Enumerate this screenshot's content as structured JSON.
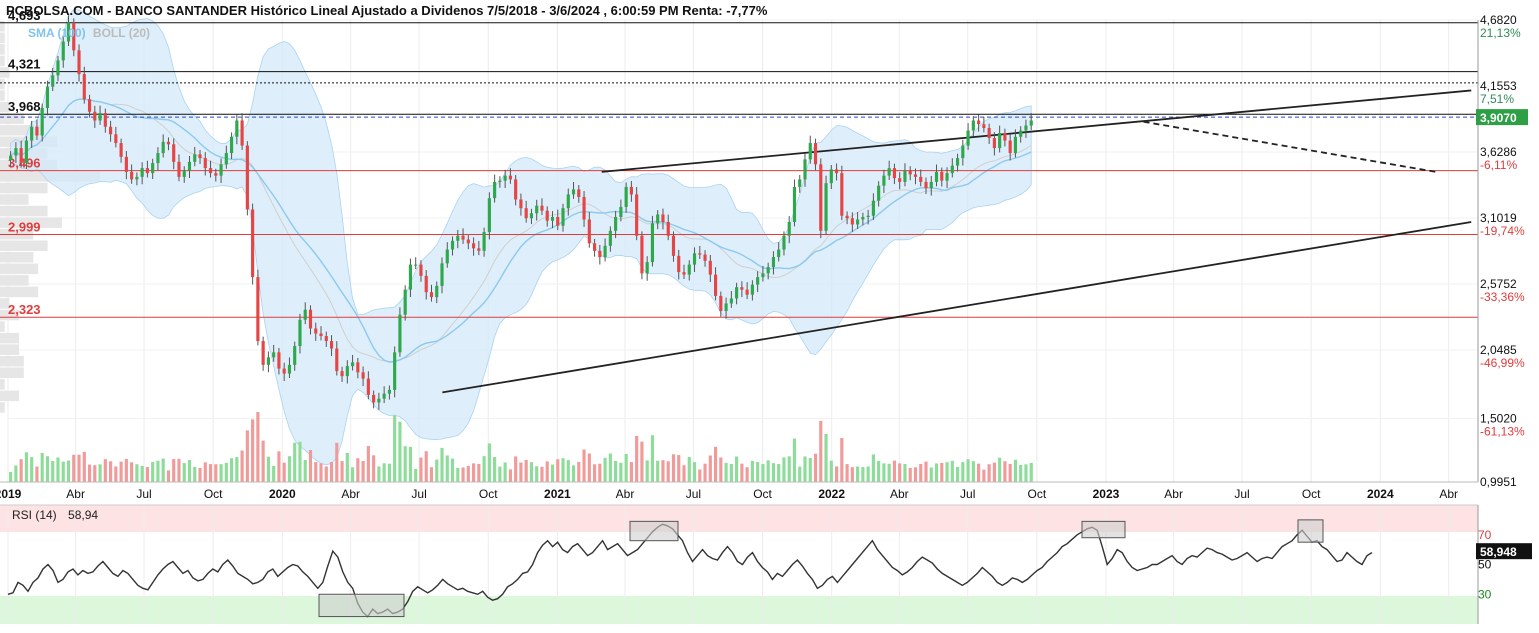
{
  "header": {
    "title": "PCBOLSA.COM - BANCO SANTANDER Histórico Lineal Ajustado a Dividenos 7/5/2018 - 3/6/2024 , 6:00:59 PM Renta: -7,77%"
  },
  "indicators": {
    "sma_label": "SMA (100)",
    "boll_label": "BOLL (20)"
  },
  "rsi": {
    "label": "RSI (14)",
    "value_text": "58,94",
    "current_badge": "58,948",
    "levels": [
      {
        "value": 70,
        "label": "70",
        "color": "#e03c3c"
      },
      {
        "value": 50,
        "label": "50",
        "color": "#111111"
      },
      {
        "value": 30,
        "label": "30",
        "color": "#1a8a1a"
      }
    ],
    "series": [
      30,
      31,
      38,
      36,
      32,
      38,
      41,
      47,
      50,
      46,
      38,
      40,
      45,
      47,
      43,
      46,
      44,
      45,
      49,
      52,
      48,
      44,
      42,
      46,
      44,
      40,
      36,
      34,
      33,
      38,
      43,
      47,
      50,
      52,
      48,
      44,
      46,
      41,
      39,
      40,
      44,
      47,
      45,
      50,
      53,
      49,
      44,
      42,
      40,
      37,
      38,
      40,
      45,
      47,
      42,
      45,
      48,
      50,
      49,
      45,
      42,
      38,
      34,
      38,
      49,
      59,
      55,
      45,
      38,
      34,
      24,
      18,
      15,
      20,
      17,
      18,
      20,
      17,
      18,
      20,
      25,
      32,
      35,
      33,
      31,
      33,
      36,
      40,
      37,
      35,
      33,
      34,
      32,
      31,
      30,
      32,
      28,
      26,
      27,
      30,
      35,
      37,
      40,
      44,
      45,
      50,
      58,
      63,
      66,
      62,
      65,
      60,
      58,
      62,
      64,
      60,
      56,
      58,
      62,
      66,
      60,
      62,
      64,
      60,
      56,
      58,
      60,
      64,
      68,
      72,
      75,
      77,
      76,
      74,
      70,
      66,
      58,
      52,
      56,
      60,
      56,
      54,
      53,
      58,
      62,
      58,
      52,
      50,
      55,
      58,
      52,
      48,
      45,
      40,
      44,
      42,
      46,
      50,
      53,
      49,
      44,
      40,
      34,
      36,
      40,
      42,
      38,
      42,
      46,
      50,
      54,
      58,
      62,
      66,
      60,
      56,
      52,
      48,
      46,
      43,
      45,
      48,
      52,
      55,
      53,
      51,
      47,
      44,
      42,
      40,
      38,
      36,
      38,
      41,
      44,
      48,
      45,
      42,
      38,
      36,
      38,
      41,
      40,
      38,
      40,
      43,
      46,
      48,
      52,
      55,
      58,
      62,
      64,
      67,
      70,
      72,
      74,
      75,
      73,
      62,
      50,
      54,
      60,
      58,
      52,
      48,
      46,
      47,
      48,
      50,
      50,
      52,
      54,
      56,
      52,
      50,
      54,
      56,
      55,
      58,
      61,
      60,
      58,
      57,
      55,
      53,
      54,
      56,
      58,
      55,
      52,
      54,
      55,
      54,
      58,
      62,
      64,
      66,
      70,
      73,
      69,
      65,
      66,
      62,
      60,
      56,
      52,
      53,
      58,
      55,
      52,
      50,
      56,
      58
    ]
  },
  "chart_data": {
    "type": "candlestick",
    "title": "PCBOLSA.COM - BANCO SANTANDER Histórico Lineal Ajustado a Dividenos 7/5/2018 - 3/6/2024 , 6:00:59 PM Renta: -7,77%",
    "start_date": "2019-01-01",
    "bar_period": "weekly",
    "x_range": [
      "2019-01-01",
      "2024-05-10"
    ],
    "ylim": [
      0.9951,
      4.682
    ],
    "x_tick_labels": [
      {
        "date": "2019-01-01",
        "label": "2019",
        "bold": true
      },
      {
        "date": "2019-04-01",
        "label": "Abr",
        "bold": false
      },
      {
        "date": "2019-07-01",
        "label": "Jul",
        "bold": false
      },
      {
        "date": "2019-10-01",
        "label": "Oct",
        "bold": false
      },
      {
        "date": "2020-01-01",
        "label": "2020",
        "bold": true
      },
      {
        "date": "2020-04-01",
        "label": "Abr",
        "bold": false
      },
      {
        "date": "2020-07-01",
        "label": "Jul",
        "bold": false
      },
      {
        "date": "2020-10-01",
        "label": "Oct",
        "bold": false
      },
      {
        "date": "2021-01-01",
        "label": "2021",
        "bold": true
      },
      {
        "date": "2021-04-01",
        "label": "Abr",
        "bold": false
      },
      {
        "date": "2021-07-01",
        "label": "Jul",
        "bold": false
      },
      {
        "date": "2021-10-01",
        "label": "Oct",
        "bold": false
      },
      {
        "date": "2022-01-01",
        "label": "2022",
        "bold": true
      },
      {
        "date": "2022-04-01",
        "label": "Abr",
        "bold": false
      },
      {
        "date": "2022-07-01",
        "label": "Jul",
        "bold": false
      },
      {
        "date": "2022-10-01",
        "label": "Oct",
        "bold": false
      },
      {
        "date": "2023-01-01",
        "label": "2023",
        "bold": true
      },
      {
        "date": "2023-04-01",
        "label": "Abr",
        "bold": false
      },
      {
        "date": "2023-07-01",
        "label": "Jul",
        "bold": false
      },
      {
        "date": "2023-10-01",
        "label": "Oct",
        "bold": false
      },
      {
        "date": "2024-01-01",
        "label": "2024",
        "bold": true
      },
      {
        "date": "2024-04-01",
        "label": "Abr",
        "bold": false
      }
    ],
    "right_axis": [
      {
        "price": "4,6820",
        "pct": "21,13%",
        "value": 4.682,
        "pct_color": "#2e8b57"
      },
      {
        "price": "4,1553",
        "pct": "7,51%",
        "value": 4.1553,
        "pct_color": "#2e8b57"
      },
      {
        "price": "3,6286",
        "pct": "-6,11%",
        "value": 3.6286,
        "pct_color": "#e03c3c"
      },
      {
        "price": "3,1019",
        "pct": "-19,74%",
        "value": 3.1019,
        "pct_color": "#e03c3c"
      },
      {
        "price": "2,5752",
        "pct": "-33,36%",
        "value": 2.5752,
        "pct_color": "#e03c3c"
      },
      {
        "price": "2,0485",
        "pct": "-46,99%",
        "value": 2.0485,
        "pct_color": "#e03c3c"
      },
      {
        "price": "1,5020",
        "pct": "-61,13%",
        "value": 1.502,
        "pct_color": "#e03c3c"
      },
      {
        "price": "0,9951",
        "pct": "",
        "value": 0.9951,
        "pct_color": "#111111"
      }
    ],
    "current_price": {
      "label": "3,9070",
      "value": 3.907
    },
    "levels": [
      {
        "label": "4,693",
        "value": 4.66,
        "color": "#111111",
        "style": "solid"
      },
      {
        "label": "4,321",
        "value": 4.27,
        "color": "#111111",
        "style": "solid"
      },
      {
        "label": "",
        "value": 4.18,
        "color": "#111111",
        "style": "dotted"
      },
      {
        "label": "3,968",
        "value": 3.93,
        "color": "#111111",
        "style": "solid"
      },
      {
        "label": "3,496",
        "value": 3.48,
        "color": "#e03c3c",
        "style": "solid"
      },
      {
        "label": "2,999",
        "value": 2.97,
        "color": "#e03c3c",
        "style": "solid"
      },
      {
        "label": "2,323",
        "value": 2.31,
        "color": "#e03c3c",
        "style": "solid"
      }
    ],
    "trendlines": [
      {
        "from": [
          "2021-03-01",
          3.47
        ],
        "to": [
          "2024-05-01",
          4.12
        ],
        "style": "solid"
      },
      {
        "from": [
          "2020-08-01",
          1.71
        ],
        "to": [
          "2024-05-01",
          3.07
        ],
        "style": "solid"
      },
      {
        "from": [
          "2023-02-20",
          3.87
        ],
        "to": [
          "2024-03-15",
          3.47
        ],
        "style": "dashed"
      }
    ],
    "close": [
      3.6,
      3.66,
      3.54,
      3.72,
      3.83,
      3.76,
      3.98,
      4.15,
      4.24,
      4.36,
      4.51,
      4.66,
      4.44,
      4.25,
      4.05,
      3.95,
      3.88,
      3.94,
      3.83,
      3.77,
      3.7,
      3.59,
      3.47,
      3.41,
      3.43,
      3.5,
      3.46,
      3.54,
      3.62,
      3.71,
      3.69,
      3.55,
      3.43,
      3.48,
      3.55,
      3.61,
      3.58,
      3.5,
      3.46,
      3.44,
      3.53,
      3.62,
      3.75,
      3.88,
      3.68,
      3.17,
      2.63,
      2.12,
      1.93,
      1.99,
      2.03,
      1.9,
      1.86,
      1.93,
      2.08,
      2.29,
      2.37,
      2.22,
      2.18,
      2.16,
      2.12,
      2.06,
      1.88,
      1.84,
      1.92,
      1.95,
      1.87,
      1.82,
      1.69,
      1.63,
      1.66,
      1.7,
      1.73,
      2.03,
      2.33,
      2.53,
      2.73,
      2.73,
      2.64,
      2.51,
      2.47,
      2.56,
      2.74,
      2.85,
      2.92,
      2.96,
      2.93,
      2.9,
      2.86,
      2.84,
      2.99,
      3.26,
      3.39,
      3.4,
      3.44,
      3.41,
      3.25,
      3.18,
      3.1,
      3.14,
      3.2,
      3.16,
      3.08,
      3.11,
      3.04,
      3.18,
      3.29,
      3.33,
      3.27,
      3.09,
      2.9,
      2.84,
      2.79,
      2.88,
      3.0,
      3.11,
      3.19,
      3.35,
      3.29,
      2.96,
      2.66,
      2.75,
      3.06,
      3.13,
      3.07,
      2.96,
      2.8,
      2.67,
      2.65,
      2.73,
      2.82,
      2.81,
      2.76,
      2.65,
      2.48,
      2.36,
      2.42,
      2.46,
      2.55,
      2.53,
      2.49,
      2.57,
      2.63,
      2.66,
      2.71,
      2.79,
      2.85,
      2.96,
      3.07,
      3.35,
      3.41,
      3.57,
      3.7,
      3.53,
      3.0,
      3.38,
      3.49,
      3.46,
      3.12,
      3.1,
      3.05,
      3.09,
      3.11,
      3.12,
      3.24,
      3.36,
      3.44,
      3.5,
      3.42,
      3.39,
      3.48,
      3.45,
      3.43,
      3.39,
      3.34,
      3.39,
      3.47,
      3.4,
      3.46,
      3.52,
      3.58,
      3.68,
      3.8,
      3.88,
      3.85,
      3.82,
      3.74,
      3.66,
      3.78,
      3.72,
      3.62,
      3.75,
      3.8,
      3.84,
      3.88
    ],
    "volume_scale": 0.25
  }
}
